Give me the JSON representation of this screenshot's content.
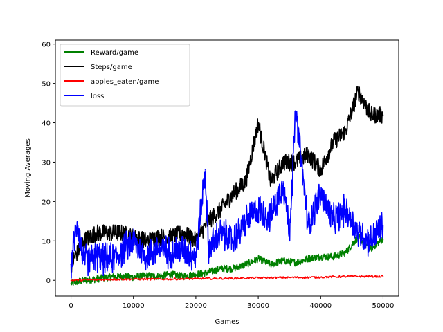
{
  "chart_data": {
    "type": "line",
    "xlabel": "Games",
    "ylabel": "Moving Averages",
    "xlim": [
      -2500,
      52500
    ],
    "ylim": [
      -4,
      61
    ],
    "x_ticks": [
      0,
      10000,
      20000,
      30000,
      40000,
      50000
    ],
    "y_ticks": [
      0,
      10,
      20,
      30,
      40,
      50,
      60
    ],
    "legend_position": "top-left",
    "grid": false,
    "series": [
      {
        "name": "Reward/game",
        "color": "#008000",
        "x": [
          0,
          2000,
          4000,
          6000,
          8000,
          10000,
          12000,
          14000,
          16000,
          18000,
          20000,
          22000,
          24000,
          26000,
          28000,
          30000,
          32000,
          34000,
          36000,
          38000,
          40000,
          42000,
          44000,
          46000,
          48000,
          50000
        ],
        "values": [
          -0.8,
          0,
          0.3,
          0.8,
          1.0,
          0.8,
          1.2,
          1.0,
          1.5,
          1.0,
          1.5,
          2.0,
          3.0,
          3.0,
          4.0,
          5.5,
          4.0,
          5.0,
          4.5,
          5.5,
          6.0,
          6.0,
          7.0,
          11.0,
          8.0,
          10.5
        ]
      },
      {
        "name": "Steps/game",
        "color": "#000000",
        "x": [
          0,
          2000,
          4000,
          6000,
          8000,
          10000,
          12000,
          14000,
          16000,
          18000,
          20000,
          22000,
          24000,
          26000,
          28000,
          30000,
          32000,
          34000,
          36000,
          38000,
          40000,
          42000,
          44000,
          46000,
          48000,
          50000
        ],
        "values": [
          4,
          10,
          12,
          12,
          12,
          11,
          10,
          11,
          11,
          12,
          10,
          15,
          18,
          22,
          25,
          40,
          25,
          30,
          30,
          32,
          28,
          35,
          38,
          48,
          42,
          42
        ]
      },
      {
        "name": "apples_eaten/game",
        "color": "#ff0000",
        "x": [
          0,
          5000,
          10000,
          15000,
          20000,
          25000,
          30000,
          35000,
          40000,
          45000,
          50000
        ],
        "values": [
          0.0,
          0.2,
          0.3,
          0.3,
          0.4,
          0.5,
          0.6,
          0.7,
          0.8,
          1.0,
          1.0
        ]
      },
      {
        "name": "loss",
        "color": "#0000ff",
        "x": [
          0,
          1000,
          2000,
          4000,
          6000,
          8000,
          10000,
          12000,
          14000,
          16000,
          18000,
          20000,
          21500,
          22000,
          24000,
          26000,
          28000,
          30000,
          32000,
          34000,
          35000,
          36000,
          38000,
          40000,
          42000,
          44000,
          46000,
          48000,
          50000
        ],
        "values": [
          4,
          15,
          5,
          6,
          5,
          7,
          10,
          6,
          8,
          7,
          8,
          6,
          28,
          8,
          12,
          10,
          15,
          18,
          16,
          25,
          12,
          43,
          14,
          22,
          15,
          18,
          12,
          10,
          14
        ]
      }
    ]
  }
}
